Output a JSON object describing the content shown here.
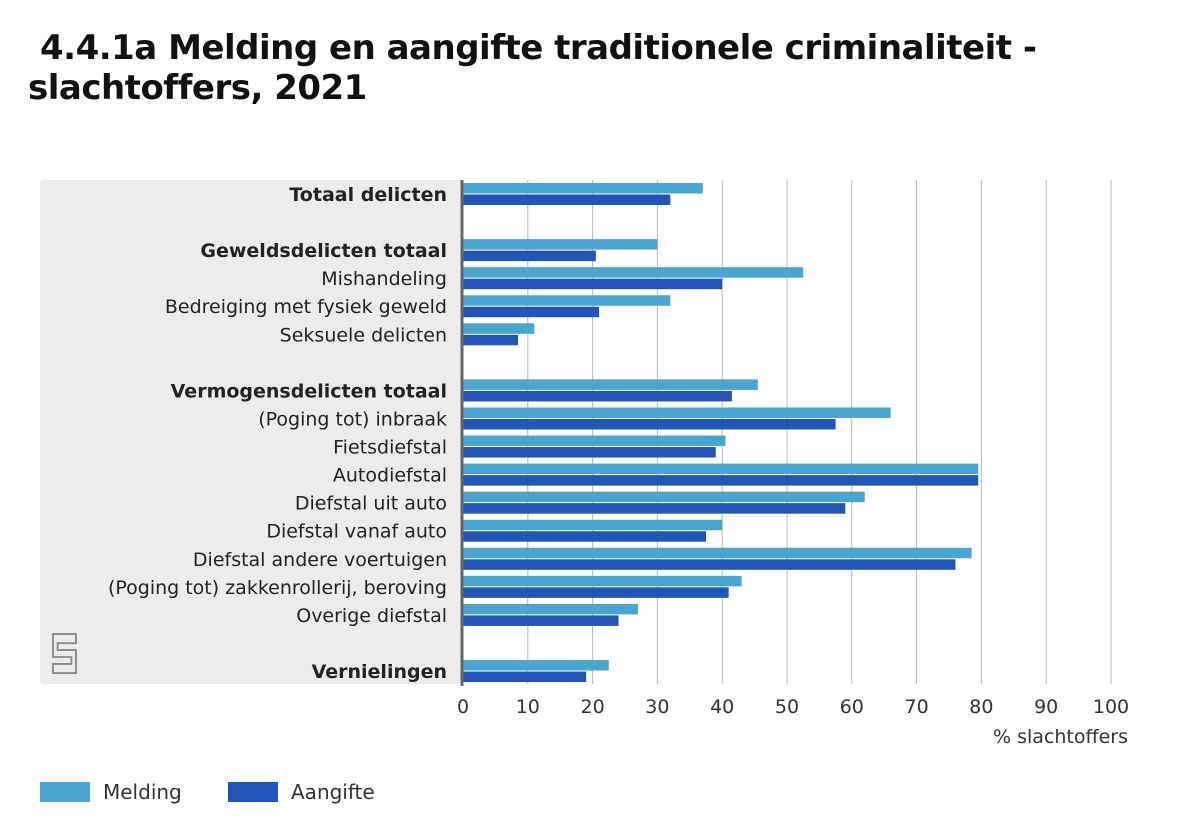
{
  "title": {
    "line1": "4.4.1a Melding en aangifte traditionele criminaliteit -",
    "line2": "slachtoffers, 2021"
  },
  "colors": {
    "melding": "#4aa6cf",
    "aangifte": "#2255b5",
    "panel": "#ececec",
    "grid": "#b8b8b8",
    "axis": "#666666"
  },
  "legend": [
    {
      "label": "Melding",
      "color": "#4aa6cf"
    },
    {
      "label": "Aangifte",
      "color": "#2255b5"
    }
  ],
  "chart_data": {
    "type": "bar",
    "orientation": "horizontal",
    "xlabel": "% slachtoffers",
    "xlim": [
      0,
      100
    ],
    "xticks": [
      "0",
      "10",
      "20",
      "30",
      "40",
      "50",
      "60",
      "70",
      "80",
      "90",
      "100"
    ],
    "categories": [
      {
        "label": "Totaal delicten",
        "bold": true,
        "melding": 37,
        "aangifte": 32
      },
      {
        "label": "",
        "gap": true
      },
      {
        "label": "Geweldsdelicten totaal",
        "bold": true,
        "melding": 30,
        "aangifte": 20.5
      },
      {
        "label": "Mishandeling",
        "bold": false,
        "melding": 52.5,
        "aangifte": 40
      },
      {
        "label": "Bedreiging met fysiek geweld",
        "bold": false,
        "melding": 32,
        "aangifte": 21
      },
      {
        "label": "Seksuele delicten",
        "bold": false,
        "melding": 11,
        "aangifte": 8.5
      },
      {
        "label": "",
        "gap": true
      },
      {
        "label": "Vermogensdelicten totaal",
        "bold": true,
        "melding": 45.5,
        "aangifte": 41.5
      },
      {
        "label": "(Poging tot) inbraak",
        "bold": false,
        "melding": 66,
        "aangifte": 57.5
      },
      {
        "label": "Fietsdiefstal",
        "bold": false,
        "melding": 40.5,
        "aangifte": 39
      },
      {
        "label": "Autodiefstal",
        "bold": false,
        "melding": 79.5,
        "aangifte": 79.5
      },
      {
        "label": "Diefstal uit auto",
        "bold": false,
        "melding": 62,
        "aangifte": 59
      },
      {
        "label": "Diefstal vanaf auto",
        "bold": false,
        "melding": 40,
        "aangifte": 37.5
      },
      {
        "label": "Diefstal andere voertuigen",
        "bold": false,
        "melding": 78.5,
        "aangifte": 76
      },
      {
        "label": "(Poging tot) zakkenrollerij, beroving",
        "bold": false,
        "melding": 43,
        "aangifte": 41
      },
      {
        "label": "Overige diefstal",
        "bold": false,
        "melding": 27,
        "aangifte": 24
      },
      {
        "label": "",
        "gap": true
      },
      {
        "label": "Vernielingen",
        "bold": true,
        "melding": 22.5,
        "aangifte": 19
      }
    ],
    "series": [
      {
        "name": "Melding",
        "key": "melding"
      },
      {
        "name": "Aangifte",
        "key": "aangifte"
      }
    ]
  }
}
